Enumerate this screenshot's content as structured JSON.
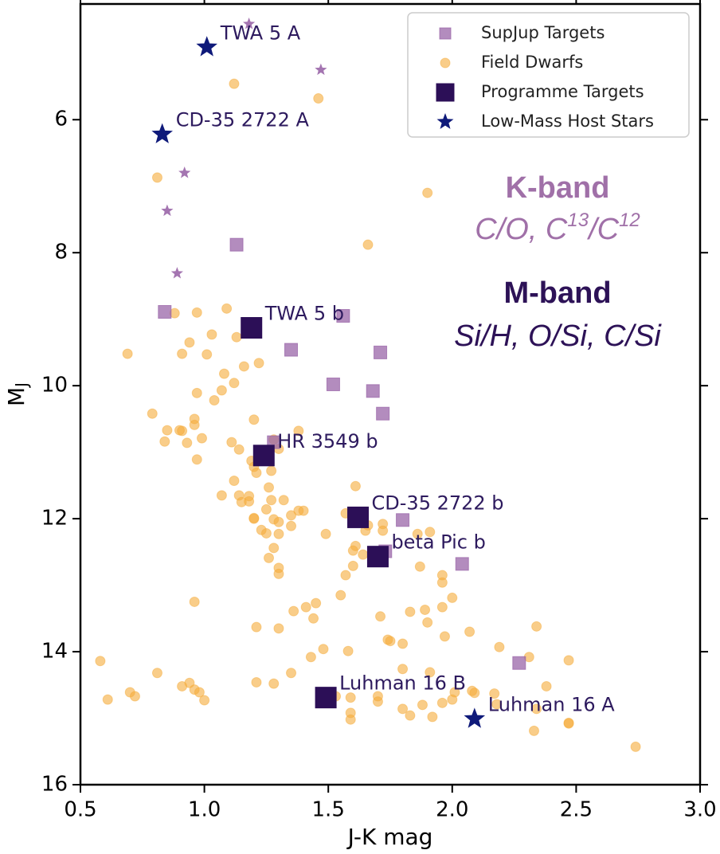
{
  "chart_data": {
    "type": "scatter",
    "xlabel": "J-K mag",
    "ylabel": "M",
    "ylabel_sub": "J",
    "xlim": [
      0.5,
      3.0
    ],
    "ylim": [
      16,
      4.26
    ],
    "xticks": [
      0.5,
      {
        "value": 1,
        "label": "1.0"
      },
      1.5,
      {
        "value": 2,
        "label": "2.0"
      },
      2.5,
      {
        "value": 3,
        "label": "3.0"
      }
    ],
    "yticks": [
      6,
      8,
      10,
      12,
      14,
      16
    ],
    "legend": "upper right",
    "annotations": {
      "k_band": "K-band",
      "k_band_detail": [
        "C/O, C",
        "13",
        "/C",
        "12"
      ],
      "m_band": "M-band",
      "m_band_detail": "Si/H, O/Si, C/Si"
    },
    "series": [
      {
        "name": "SupJup Targets",
        "marker": "square",
        "color": "#9a66a8",
        "alpha": 0.75,
        "x": [
          1.13,
          0.84,
          1.56,
          1.35,
          1.71,
          1.52,
          1.68,
          1.72,
          1.28,
          1.8,
          1.73,
          2.04,
          2.27
        ],
        "y": [
          7.88,
          8.89,
          8.95,
          9.46,
          9.5,
          9.98,
          10.08,
          10.42,
          10.85,
          12.02,
          12.49,
          12.68,
          14.17
        ]
      },
      {
        "marker": "star",
        "color": "#9a66a8",
        "alpha": 0.9,
        "x": [
          1.18,
          1.47,
          0.92,
          0.85,
          0.89
        ],
        "y": [
          4.56,
          5.25,
          6.8,
          7.37,
          8.31
        ]
      },
      {
        "name": "Field Dwarfs",
        "marker": "circle",
        "color": "#f5ac3a",
        "alpha": 0.6,
        "x": [
          1.12,
          1.46,
          1.9,
          0.81,
          1.66,
          0.88,
          0.97,
          1.09,
          1.03,
          1.13,
          0.94,
          0.69,
          0.91,
          1.01,
          1.16,
          1.22,
          1.12,
          1.07,
          1.04,
          0.97,
          0.79,
          1.2,
          0.96,
          0.91,
          0.85,
          0.96,
          1.38,
          0.93,
          0.84,
          1.28,
          0.97,
          1.14,
          1.19,
          1.21,
          1.2,
          1.12,
          1.27,
          1.26,
          1.14,
          1.18,
          1.07,
          1.18,
          1.15,
          1.27,
          1.32,
          1.2,
          1.38,
          1.4,
          1.35,
          1.28,
          1.3,
          1.35,
          1.2,
          1.3,
          1.25,
          1.61,
          1.57,
          1.66,
          1.72,
          1.65,
          1.49,
          1.61,
          1.6,
          1.64,
          1.6,
          1.72,
          1.91,
          1.86,
          1.28,
          1.26,
          1.3,
          1.3,
          1.57,
          1.87,
          1.96,
          1.96,
          0.96,
          1.55,
          1.45,
          1.41,
          1.36,
          1.44,
          1.71,
          1.83,
          1.89,
          1.96,
          2.0,
          1.9,
          1.74,
          1.75,
          1.8,
          1.97,
          1.3,
          1.21,
          1.48,
          1.43,
          1.35,
          1.58,
          2.07,
          2.19,
          2.34,
          2.31,
          1.8,
          1.91,
          1.28,
          0.58,
          0.81,
          0.94,
          0.91,
          0.96,
          0.98,
          1.0,
          0.7,
          0.61,
          0.72,
          1.21,
          1.53,
          1.59,
          1.7,
          1.88,
          1.96,
          2.09,
          2.01,
          2.08,
          2.17,
          1.8,
          1.83,
          1.92,
          1.59,
          2.18,
          2.0,
          2.34,
          2.38,
          2.47,
          2.33,
          2.47,
          2.47,
          2.74,
          1.59,
          1.7,
          1.11,
          1.08,
          1.3,
          0.99,
          0.9,
          1.25,
          1.23
        ],
        "y": [
          5.46,
          5.68,
          7.1,
          6.87,
          7.88,
          8.91,
          8.9,
          8.84,
          9.23,
          9.27,
          9.35,
          9.52,
          9.52,
          9.53,
          9.71,
          9.66,
          9.96,
          10.07,
          10.22,
          10.11,
          10.42,
          10.51,
          10.5,
          10.68,
          10.67,
          10.59,
          10.68,
          10.86,
          10.84,
          10.81,
          11.11,
          10.96,
          11.13,
          11.31,
          11.22,
          11.43,
          11.28,
          11.53,
          11.65,
          11.66,
          11.65,
          11.74,
          11.75,
          11.72,
          11.72,
          12.0,
          11.88,
          11.88,
          11.95,
          12.01,
          12.05,
          12.11,
          11.99,
          12.23,
          12.22,
          11.51,
          11.92,
          12.1,
          12.08,
          12.18,
          12.23,
          12.41,
          12.48,
          12.54,
          12.71,
          12.18,
          12.2,
          12.23,
          12.44,
          12.59,
          12.74,
          12.83,
          12.85,
          12.72,
          12.85,
          12.96,
          13.25,
          13.15,
          13.27,
          13.33,
          13.39,
          13.5,
          13.47,
          13.4,
          13.37,
          13.33,
          13.19,
          13.56,
          13.82,
          13.84,
          13.88,
          13.77,
          13.65,
          13.63,
          13.96,
          14.08,
          14.32,
          13.99,
          13.7,
          13.93,
          13.62,
          14.08,
          14.26,
          14.31,
          14.48,
          14.14,
          14.32,
          14.47,
          14.52,
          14.57,
          14.61,
          14.73,
          14.61,
          14.72,
          14.67,
          14.46,
          14.67,
          14.69,
          14.75,
          14.8,
          14.77,
          14.62,
          14.61,
          14.59,
          14.63,
          14.86,
          14.96,
          14.98,
          15.02,
          14.79,
          14.72,
          14.86,
          14.52,
          14.13,
          15.19,
          15.07,
          15.08,
          15.43,
          14.92,
          14.67,
          10.85,
          9.82,
          10.95,
          10.79,
          10.67,
          11.86,
          12.17
        ]
      },
      {
        "name": "Programme Targets",
        "marker": "square",
        "color": "#2c0f57",
        "alpha": 1,
        "x": [
          1.19,
          1.24,
          1.62,
          1.7,
          1.49
        ],
        "y": [
          9.13,
          11.05,
          11.98,
          12.57,
          14.69
        ],
        "labels": [
          "TWA 5 b",
          "HR 3549 b",
          "CD-35 2722 b",
          "beta Pic b",
          "Luhman 16 B"
        ]
      },
      {
        "name": "Low-Mass Host Stars",
        "marker": "star",
        "color": "#0f1a7a",
        "alpha": 1,
        "x": [
          1.01,
          0.83,
          2.09
        ],
        "y": [
          4.91,
          6.22,
          15.01
        ],
        "labels": [
          "TWA 5 A",
          "CD-35 2722 A",
          "Luhman 16 A"
        ]
      }
    ]
  }
}
